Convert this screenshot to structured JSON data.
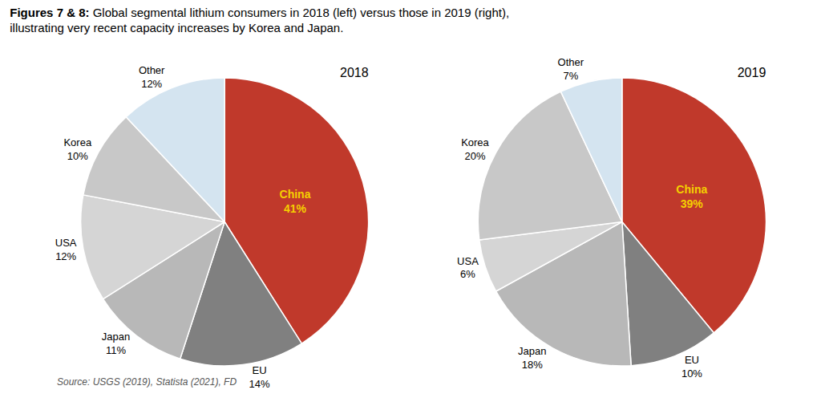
{
  "title": "Figures 7 & 8: Global segmental lithium consumers in 2018 (left) versus those in 2019 (right),\nillustrating very recent capacity increases by Korea and Japan.",
  "annotations": [
    "Source: USGS (2019), Statista (2021), FD"
  ],
  "chart_data": [
    {
      "type": "pie",
      "title": "2018",
      "categories": [
        "China",
        "EU",
        "Japan",
        "USA",
        "Korea",
        "Other"
      ],
      "values": [
        41,
        14,
        11,
        12,
        10,
        12
      ],
      "value_labels": [
        "41%",
        "14%",
        "11%",
        "12%",
        "10%",
        "12%"
      ],
      "colors": [
        "#c0392b",
        "#808080",
        "#b8b8b8",
        "#d5d5d5",
        "#c8c8c8",
        "#d4e4f0"
      ],
      "data_labels": true
    },
    {
      "type": "pie",
      "title": "2019",
      "categories": [
        "China",
        "EU",
        "Japan",
        "USA",
        "Korea",
        "Other"
      ],
      "values": [
        39,
        10,
        18,
        6,
        20,
        7
      ],
      "value_labels": [
        "39%",
        "10%",
        "18%",
        "6%",
        "20%",
        "7%"
      ],
      "colors": [
        "#c0392b",
        "#808080",
        "#b8b8b8",
        "#d5d5d5",
        "#c8c8c8",
        "#d4e4f0"
      ],
      "data_labels": true
    }
  ]
}
